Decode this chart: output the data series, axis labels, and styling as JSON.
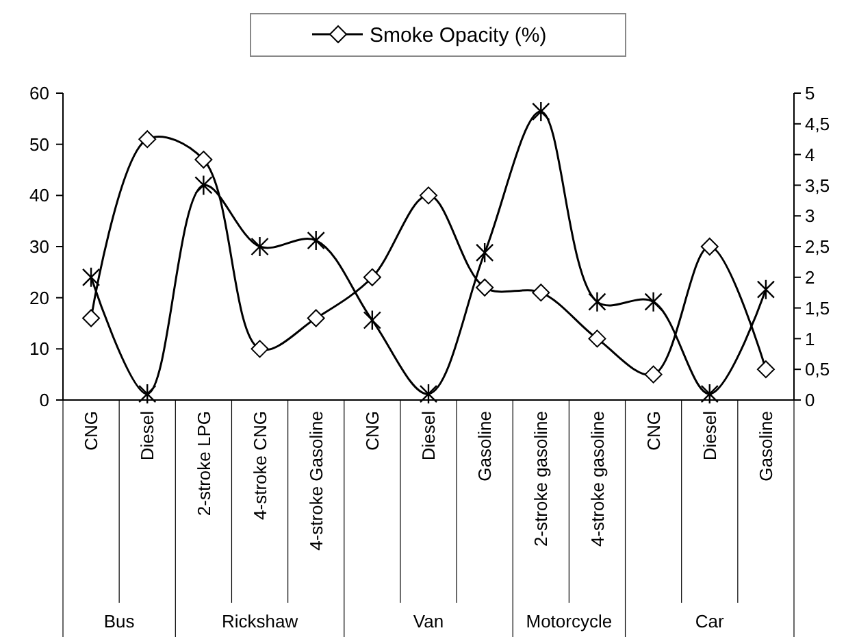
{
  "chart_data": {
    "type": "line",
    "categories": [
      "CNG",
      "Diesel",
      "2-stroke LPG",
      "4-stroke CNG",
      "4-stroke Gasoline",
      "CNG",
      "Diesel",
      "Gasoline",
      "2-stroke gasoline",
      "4-stroke gasoline",
      "CNG",
      "Diesel",
      "Gasoline"
    ],
    "series": [
      {
        "name": "Smoke Opacity (%)",
        "color": "#000000",
        "marker": "diamond",
        "values": [
          16,
          51,
          47,
          10,
          16,
          24,
          40,
          22,
          21,
          12,
          5,
          30,
          6
        ]
      },
      {
        "color": "#000000",
        "marker": "cross",
        "axis": "y2",
        "values": [
          2.0,
          0.1,
          3.5,
          2.5,
          2.6,
          1.3,
          0.1,
          2.4,
          4.7,
          1.6,
          1.6,
          0.1,
          1.8
        ]
      }
    ],
    "ylim": [
      0,
      60
    ],
    "yticks": [
      0,
      10,
      20,
      30,
      40,
      50,
      60
    ],
    "y2lim": [
      0,
      5
    ],
    "y2ticks": [
      0,
      {
        "value": 0.5,
        "label": "0,5"
      },
      1,
      {
        "value": 1.5,
        "label": "1,5"
      },
      2,
      {
        "value": 2.5,
        "label": "2,5"
      },
      3,
      {
        "value": 3.5,
        "label": "3,5"
      },
      4,
      {
        "value": 4.5,
        "label": "4,5"
      },
      5
    ],
    "annotations": [
      "Bus",
      "Rickshaw",
      "Van",
      "Motorcycle",
      "Car"
    ],
    "legend": "top",
    "grid": false,
    "line_style": "solid"
  }
}
